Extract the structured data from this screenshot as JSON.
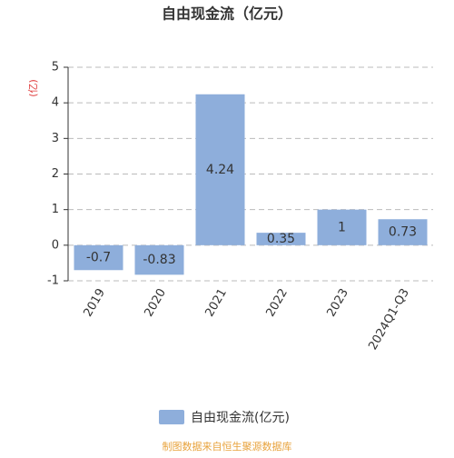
{
  "chart_data": {
    "type": "bar",
    "title": "自由现金流（亿元）",
    "y_label": "(亿)",
    "categories": [
      "2019",
      "2020",
      "2021",
      "2022",
      "2023",
      "2024Q1-Q3"
    ],
    "series": [
      {
        "name": "自由现金流(亿元)",
        "color": "#8eaedb",
        "values": [
          -0.7,
          -0.83,
          4.24,
          0.35,
          1,
          0.73
        ]
      }
    ],
    "ylim": [
      -1,
      5
    ],
    "yticks": [
      -1,
      0,
      1,
      2,
      3,
      4,
      5
    ],
    "grid": true,
    "source": "制图数据来自恒生聚源数据库"
  }
}
